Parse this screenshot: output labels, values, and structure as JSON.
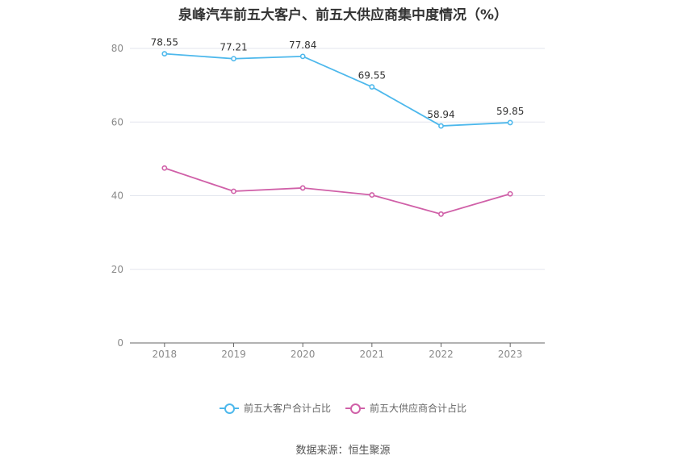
{
  "title": "泉峰汽车前五大客户、前五大供应商集中度情况（%）",
  "source": "数据来源：恒生聚源",
  "chart_data": {
    "type": "line",
    "title": "泉峰汽车前五大客户、前五大供应商集中度情况（%）",
    "xlabel": "",
    "ylabel": "",
    "categories": [
      "2018",
      "2019",
      "2020",
      "2021",
      "2022",
      "2023"
    ],
    "ylim": [
      0,
      80
    ],
    "yticks": [
      0,
      20,
      40,
      60,
      80
    ],
    "grid": true,
    "legend_position": "bottom",
    "series": [
      {
        "name": "前五大客户合计占比",
        "values": [
          78.55,
          77.21,
          77.84,
          69.55,
          58.94,
          59.85
        ],
        "labels": [
          "78.55",
          "77.21",
          "77.84",
          "69.55",
          "58.94",
          "59.85"
        ],
        "color": "#4db8ec"
      },
      {
        "name": "前五大供应商合计占比",
        "values": [
          47.5,
          41.2,
          42.1,
          40.2,
          35.0,
          40.5
        ],
        "color": "#d060a8"
      }
    ]
  }
}
